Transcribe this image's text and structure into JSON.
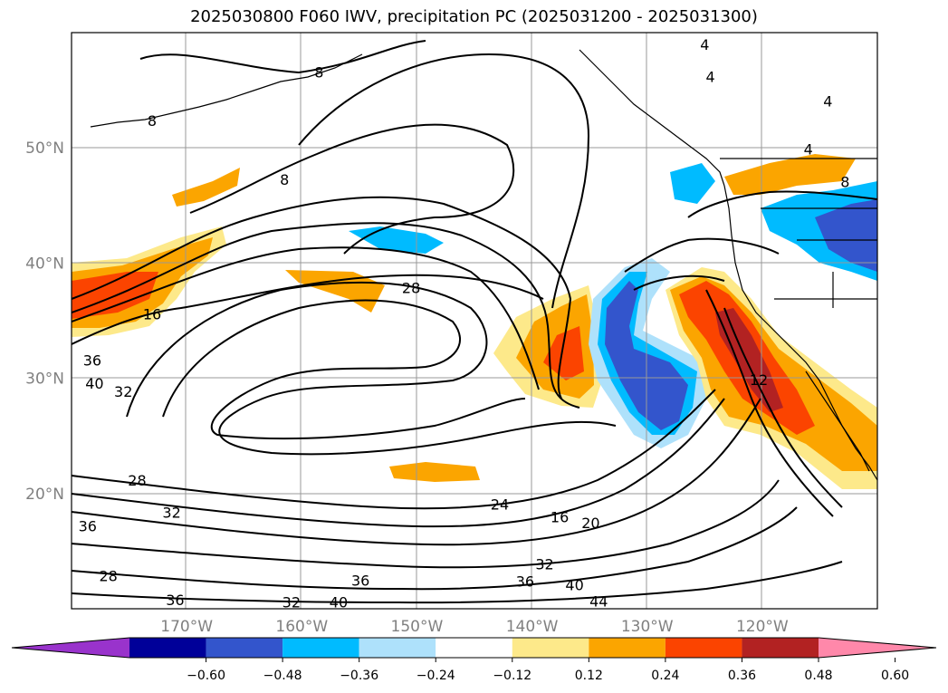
{
  "chart_data": {
    "type": "contour_map",
    "title": "2025030800 F060 IWV, precipitation PC (2025031200 - 2025031300)",
    "lon_range": [
      -180,
      -110
    ],
    "lat_range": [
      10,
      60
    ],
    "grid": true,
    "lat_ticks": [
      {
        "value": 20,
        "label": "20°N"
      },
      {
        "value": 30,
        "label": "30°N"
      },
      {
        "value": 40,
        "label": "40°N"
      },
      {
        "value": 50,
        "label": "50°N"
      }
    ],
    "lon_ticks": [
      {
        "value": -170,
        "label": "170°W"
      },
      {
        "value": -160,
        "label": "160°W"
      },
      {
        "value": -150,
        "label": "150°W"
      },
      {
        "value": -140,
        "label": "140°W"
      },
      {
        "value": -130,
        "label": "130°W"
      },
      {
        "value": -120,
        "label": "120°W"
      }
    ],
    "contour_labels": [
      {
        "text": "8",
        "lon": -158.5,
        "lat": 56.5
      },
      {
        "text": "8",
        "lon": -173.0,
        "lat": 52.3
      },
      {
        "text": "8",
        "lon": -161.5,
        "lat": 47.2
      },
      {
        "text": "4",
        "lon": -125.0,
        "lat": 58.9
      },
      {
        "text": "4",
        "lon": -124.5,
        "lat": 56.1
      },
      {
        "text": "4",
        "lon": -114.3,
        "lat": 54.0
      },
      {
        "text": "4",
        "lon": -116.0,
        "lat": 49.8
      },
      {
        "text": "8",
        "lon": -112.8,
        "lat": 47.0
      },
      {
        "text": "28",
        "lon": -150.5,
        "lat": 37.8
      },
      {
        "text": "16",
        "lon": -173.0,
        "lat": 35.5
      },
      {
        "text": "36",
        "lon": -178.2,
        "lat": 31.5
      },
      {
        "text": "40",
        "lon": -178.0,
        "lat": 29.5
      },
      {
        "text": "32",
        "lon": -175.5,
        "lat": 28.8
      },
      {
        "text": "12",
        "lon": -120.3,
        "lat": 29.8
      },
      {
        "text": "28",
        "lon": -174.3,
        "lat": 21.1
      },
      {
        "text": "32",
        "lon": -171.3,
        "lat": 18.3
      },
      {
        "text": "36",
        "lon": -178.6,
        "lat": 17.1
      },
      {
        "text": "28",
        "lon": -176.8,
        "lat": 12.8
      },
      {
        "text": "24",
        "lon": -142.8,
        "lat": 19.0
      },
      {
        "text": "16",
        "lon": -137.6,
        "lat": 17.9
      },
      {
        "text": "20",
        "lon": -134.9,
        "lat": 17.4
      },
      {
        "text": "32",
        "lon": -138.9,
        "lat": 13.8
      },
      {
        "text": "36",
        "lon": -154.9,
        "lat": 12.4
      },
      {
        "text": "36",
        "lon": -140.6,
        "lat": 12.3
      },
      {
        "text": "40",
        "lon": -136.3,
        "lat": 12.0
      },
      {
        "text": "36",
        "lon": -171.0,
        "lat": 10.7
      },
      {
        "text": "32",
        "lon": -160.9,
        "lat": 10.5
      },
      {
        "text": "40",
        "lon": -156.8,
        "lat": 10.5
      },
      {
        "text": "44",
        "lon": -134.2,
        "lat": 10.6
      }
    ],
    "colorbar": {
      "ticks": [
        "-0.60",
        "-0.48",
        "-0.36",
        "-0.24",
        "-0.12",
        "0.12",
        "0.24",
        "0.36",
        "0.48",
        "0.60"
      ],
      "colors": [
        "#9933cc",
        "#000099",
        "#3355cc",
        "#00bbff",
        "#aee1fb",
        "#ffffff",
        "#fde98a",
        "#fba500",
        "#fb4400",
        "#b22222",
        "#ff88aa"
      ],
      "extend": "both"
    }
  }
}
